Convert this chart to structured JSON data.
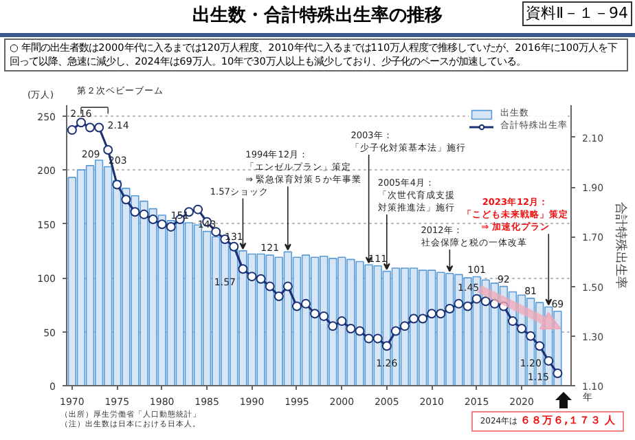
{
  "chart_data": {
    "type": "bar",
    "title": "出生数・合計特殊出生率の推移",
    "subtitle": "○ 年間の出生者数は2000年代に入るまでは120万人程度、2010年代に入るまでは110万人程度で推移していたが、2016年に100万人を下回って以降、急速に減少し、2024年は69万人。10年で30万人以上も減少しており、少子化のペースが加速している。",
    "ylabel": "(万人)",
    "y2label": "合計特殊出生率",
    "xlabel": "年",
    "x": [
      1970,
      1971,
      1972,
      1973,
      1974,
      1975,
      1976,
      1977,
      1978,
      1979,
      1980,
      1981,
      1982,
      1983,
      1984,
      1985,
      1986,
      1987,
      1988,
      1989,
      1990,
      1991,
      1992,
      1993,
      1994,
      1995,
      1996,
      1997,
      1998,
      1999,
      2000,
      2001,
      2002,
      2003,
      2004,
      2005,
      2006,
      2007,
      2008,
      2009,
      2010,
      2011,
      2012,
      2013,
      2014,
      2015,
      2016,
      2017,
      2018,
      2019,
      2020,
      2021,
      2022,
      2023,
      2024
    ],
    "series": [
      {
        "name": "出生数",
        "color": "#d6e6f7",
        "values": [
          193,
          200,
          204,
          209,
          203,
          190,
          183,
          176,
          171,
          164,
          158,
          153,
          151,
          151,
          149,
          143,
          138,
          135,
          131,
          125,
          122,
          122,
          121,
          119,
          124,
          119,
          121,
          119,
          120,
          118,
          119,
          117,
          115,
          112,
          111,
          106,
          109,
          109,
          109,
          107,
          107,
          105,
          104,
          103,
          100,
          101,
          98,
          95,
          92,
          87,
          84,
          81,
          77,
          73,
          69
        ],
        "value_labels": [
          null,
          null,
          null,
          "209",
          "203",
          null,
          null,
          null,
          null,
          null,
          null,
          null,
          "151",
          null,
          null,
          "143",
          null,
          null,
          "131",
          null,
          null,
          null,
          "121",
          null,
          null,
          null,
          null,
          null,
          null,
          null,
          null,
          null,
          null,
          null,
          "111",
          null,
          null,
          null,
          null,
          null,
          null,
          null,
          null,
          null,
          null,
          "101",
          null,
          null,
          "92",
          null,
          null,
          "81",
          null,
          null,
          "69"
        ]
      },
      {
        "name": "合計特殊出生率",
        "type": "line",
        "axis": "y2",
        "color": "#1a3175",
        "values": [
          2.13,
          2.16,
          2.14,
          2.14,
          2.05,
          1.91,
          1.85,
          1.8,
          1.79,
          1.77,
          1.75,
          1.74,
          1.77,
          1.8,
          1.81,
          1.76,
          1.72,
          1.69,
          1.66,
          1.57,
          1.54,
          1.53,
          1.5,
          1.46,
          1.5,
          1.42,
          1.43,
          1.39,
          1.38,
          1.34,
          1.36,
          1.33,
          1.32,
          1.29,
          1.29,
          1.26,
          1.32,
          1.34,
          1.37,
          1.37,
          1.39,
          1.39,
          1.41,
          1.43,
          1.42,
          1.45,
          1.44,
          1.43,
          1.42,
          1.36,
          1.33,
          1.3,
          1.26,
          1.2,
          1.15
        ],
        "value_labels": [
          null,
          "2.16",
          null,
          "2.14",
          null,
          null,
          null,
          null,
          null,
          null,
          null,
          null,
          null,
          null,
          null,
          null,
          null,
          null,
          null,
          "1.57",
          null,
          null,
          null,
          null,
          null,
          null,
          null,
          null,
          null,
          null,
          null,
          null,
          null,
          null,
          null,
          "1.26",
          null,
          null,
          null,
          null,
          null,
          null,
          null,
          null,
          null,
          "1.45",
          null,
          null,
          null,
          null,
          null,
          null,
          null,
          "1.20",
          "1.15"
        ]
      }
    ],
    "xlim": [
      1969.4,
      2025.5
    ],
    "xticks": [
      1970,
      1975,
      1980,
      1985,
      1990,
      1995,
      2000,
      2005,
      2010,
      2015,
      2020
    ],
    "ylim": [
      0,
      260
    ],
    "yticks": [
      0,
      50,
      100,
      150,
      200,
      250
    ],
    "y2lim": [
      1.1,
      2.23
    ],
    "y2ticks": [
      {
        "value": 1.1,
        "label": "1.10"
      },
      {
        "value": 1.3,
        "label": "1.30"
      },
      {
        "value": 1.5,
        "label": "1.50"
      },
      {
        "value": 1.7,
        "label": "1.70"
      },
      {
        "value": 1.9,
        "label": "1.90"
      },
      {
        "value": 2.1,
        "label": "2.10"
      }
    ],
    "grid": "y",
    "legend": "top right",
    "marker": "circle",
    "line_style": "solid",
    "annotations": [
      "資料Ⅱ－１－94",
      "第２次ベビーブーム",
      {
        "text": "1.57ショック",
        "x": 1989,
        "y": 125
      },
      "1994年12月：",
      "「エンゼルプラン」策定",
      {
        "text": "⇒ 緊急保育対策５か年事業",
        "x": 1994,
        "y": 124
      },
      "2003年：",
      {
        "text": "「少子化対策基本法」施行",
        "x": 2003,
        "y": 112
      },
      "2005年4月：",
      "「次世代育成支援",
      {
        "text": "対策推進法」施行",
        "x": 2005,
        "y": 106
      },
      "2012年：",
      {
        "text": "社会保障と税の一体改革",
        "x": 2012,
        "y": 104
      },
      "2023年12月：",
      "「こども未来戦略」策定",
      {
        "text": "⇒ 加速化プラン",
        "x": 2023,
        "y": 73
      },
      "（出所）厚生労働省「人口動態統計」",
      "（注）出生数は日本における日本人。",
      "2024年は",
      "６８万６,１７３ 人"
    ]
  }
}
